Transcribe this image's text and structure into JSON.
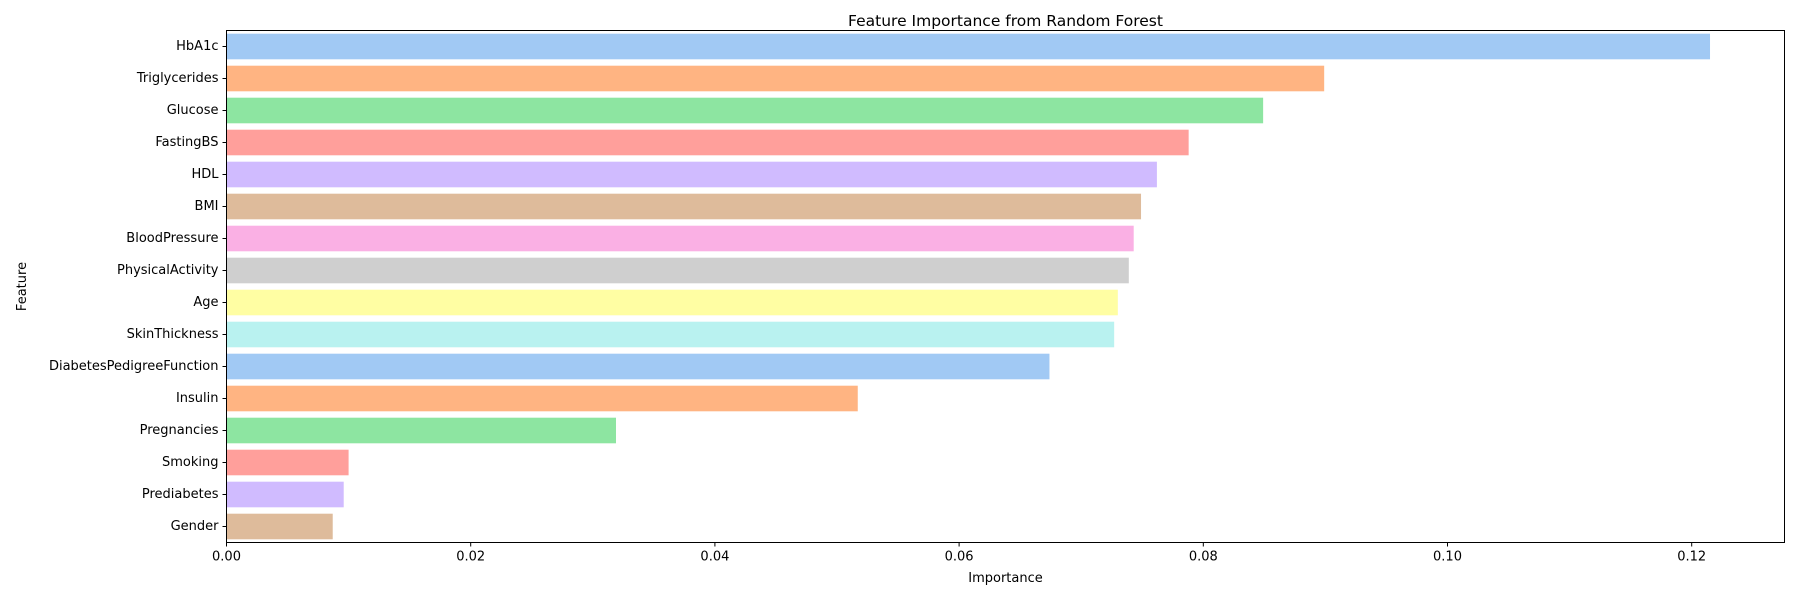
{
  "chart_data": {
    "type": "bar",
    "orientation": "horizontal",
    "title": "Feature Importance from Random Forest",
    "xlabel": "Importance",
    "ylabel": "Feature",
    "xlim": [
      0,
      0.1276
    ],
    "xticks": [
      0,
      0.02,
      0.04,
      0.06,
      0.08,
      0.1,
      0.12
    ],
    "xtick_labels": [
      "0.00",
      "0.02",
      "0.04",
      "0.06",
      "0.08",
      "0.10",
      "0.12"
    ],
    "grid": false,
    "categories": [
      "HbA1c",
      "Triglycerides",
      "Glucose",
      "FastingBS",
      "HDL",
      "BMI",
      "BloodPressure",
      "PhysicalActivity",
      "Age",
      "SkinThickness",
      "DiabetesPedigreeFunction",
      "Insulin",
      "Pregnancies",
      "Smoking",
      "Prediabetes",
      "Gender"
    ],
    "values": [
      0.1215,
      0.0899,
      0.0849,
      0.0788,
      0.0762,
      0.0749,
      0.0743,
      0.0739,
      0.073,
      0.0727,
      0.0674,
      0.0517,
      0.0319,
      0.01,
      0.0096,
      0.0087
    ],
    "colors": [
      "#a1c9f4",
      "#ffb482",
      "#8de5a1",
      "#ff9f9b",
      "#d0bbff",
      "#debb9b",
      "#fab0e4",
      "#cfcfcf",
      "#fffea3",
      "#b9f2f0",
      "#a1c9f4",
      "#ffb482",
      "#8de5a1",
      "#ff9f9b",
      "#d0bbff",
      "#debb9b"
    ]
  }
}
